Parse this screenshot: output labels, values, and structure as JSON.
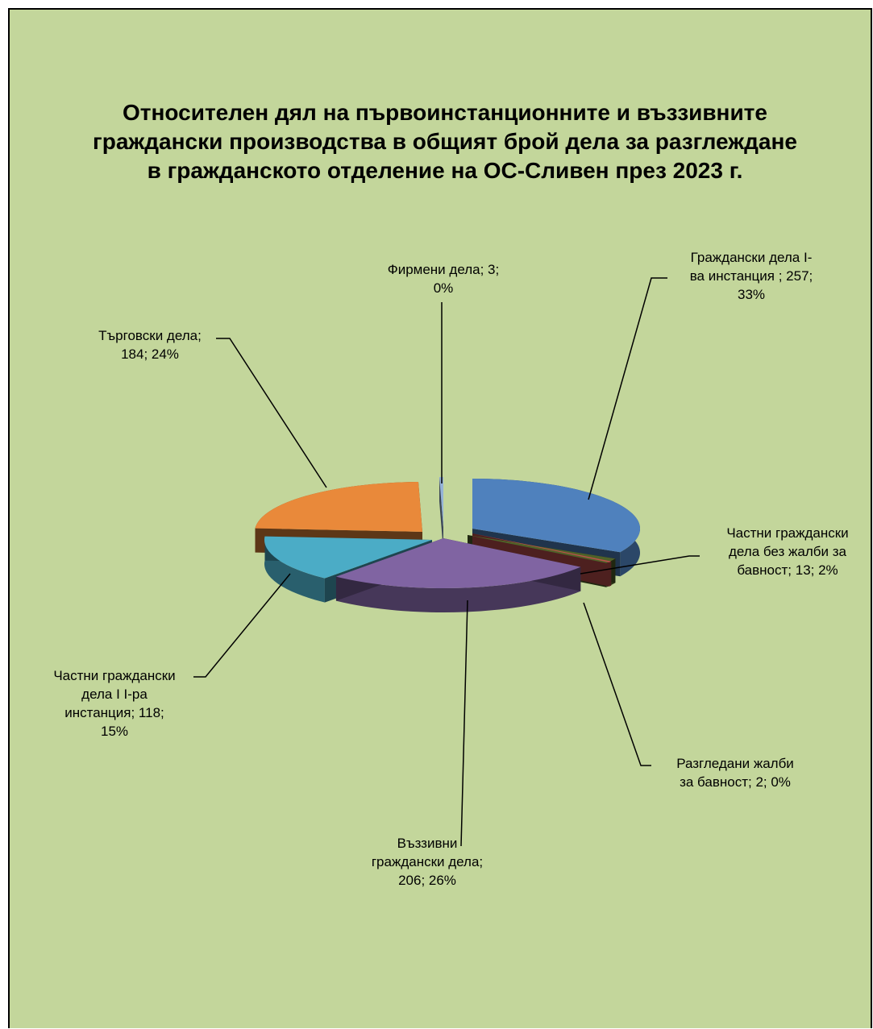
{
  "chart_data": {
    "type": "pie",
    "variant": "3d-exploded",
    "title": "Относителен дял на първоинстанционните и въззивните граждански производства в общият брой дела за разглеждане в гражданското отделение на ОС-Сливен през 2023 г.",
    "slices": [
      {
        "label": "Граждански дела I-ва инстанция ; 257; 33%",
        "name": "Граждански дела I-ва инстанция",
        "value": 257,
        "percent": 33,
        "color": "#4f81bd"
      },
      {
        "label": "Частни граждански дела без жалби за бавност; 13; 2%",
        "name": "Частни граждански дела без жалби за бавност",
        "value": 13,
        "percent": 2,
        "color": "#4f6228"
      },
      {
        "label": "Разгледани жалби за бавност; 2; 0%",
        "name": "Разгледани жалби за бавност",
        "value": 2,
        "percent": 0,
        "color": "#c0504d"
      },
      {
        "label": "Въззивни граждански дела; 206; 26%",
        "name": "Въззивни граждански дела",
        "value": 206,
        "percent": 26,
        "color": "#8064a2"
      },
      {
        "label": "Частни граждански дела I I-ра инстанция; 118; 15%",
        "name": "Частни граждански дела I I-ра инстанция",
        "value": 118,
        "percent": 15,
        "color": "#4bacc6"
      },
      {
        "label": "Търговски дела; 184; 24%",
        "name": "Търговски дела",
        "value": 184,
        "percent": 24,
        "color": "#e9893a"
      },
      {
        "label": "Фирмени дела; 3; 0%",
        "name": "Фирмени дела",
        "value": 3,
        "percent": 0,
        "color": "#95b3d7"
      }
    ],
    "legend": "none",
    "data_labels": "outside with leader lines"
  }
}
